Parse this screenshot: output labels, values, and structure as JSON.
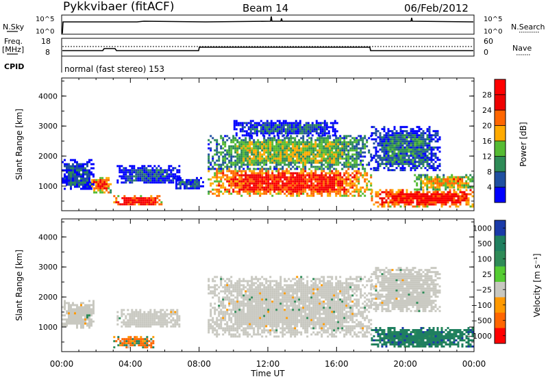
{
  "header": {
    "radar": "Pykkvibaer (fitACF)",
    "beam": "Beam 14",
    "date": "06/Feb/2012"
  },
  "status_panels": {
    "nsky_label": "N.Sky",
    "nsky_ticks": [
      "10^5",
      "10^0"
    ],
    "nsearch_label": "N.Search",
    "nsearch_ticks": [
      "10^5",
      "10^0"
    ],
    "freq_label": "Freq.",
    "freq_unit": "[MHz]",
    "freq_ticks": [
      "18",
      "8"
    ],
    "nave_label": "Nave",
    "nave_ticks": [
      "60",
      "0"
    ],
    "cpid_label": "CPID",
    "cpid_text": "normal (fast stereo) 153"
  },
  "chart_data": [
    {
      "type": "heatmap",
      "title": "",
      "xlabel": "",
      "ylabel": "Slant Range [km]",
      "x_ticks": [
        "00:00",
        "04:00",
        "08:00",
        "12:00",
        "16:00",
        "20:00",
        "00:00"
      ],
      "xlim_hours": [
        0,
        24
      ],
      "y_ticks": [
        "1000",
        "2000",
        "3000",
        "4000"
      ],
      "ylim": [
        180,
        4600
      ],
      "colorbar": {
        "label": "Power [dB]",
        "ticks": [
          "4",
          "8",
          "12",
          "16",
          "20",
          "24",
          "28"
        ],
        "range": [
          0,
          30
        ],
        "colors": [
          "#0000ff",
          "#1f4fa0",
          "#2e8b57",
          "#55bb33",
          "#ffaa00",
          "#ff6600",
          "#ee0000",
          "#ff0000"
        ]
      },
      "regions": [
        {
          "hours": [
            0.0,
            1.8
          ],
          "range_km": [
            900,
            1900
          ],
          "value": 6
        },
        {
          "hours": [
            1.6,
            2.8
          ],
          "range_km": [
            800,
            1300
          ],
          "value": 22
        },
        {
          "hours": [
            3.0,
            5.8
          ],
          "range_km": [
            380,
            700
          ],
          "value": 26
        },
        {
          "hours": [
            3.2,
            6.8
          ],
          "range_km": [
            1100,
            1700
          ],
          "value": 6
        },
        {
          "hours": [
            6.5,
            8.2
          ],
          "range_km": [
            900,
            1300
          ],
          "value": 6
        },
        {
          "hours": [
            8.5,
            18.0
          ],
          "range_km": [
            700,
            1600
          ],
          "value": 24
        },
        {
          "hours": [
            8.5,
            18.0
          ],
          "range_km": [
            1600,
            2700
          ],
          "value": 14
        },
        {
          "hours": [
            10.0,
            16.0
          ],
          "range_km": [
            2700,
            3200
          ],
          "value": 6
        },
        {
          "hours": [
            18.0,
            24.0
          ],
          "range_km": [
            350,
            900
          ],
          "value": 26
        },
        {
          "hours": [
            20.5,
            24.0
          ],
          "range_km": [
            900,
            1400
          ],
          "value": 18
        },
        {
          "hours": [
            18.0,
            22.0
          ],
          "range_km": [
            1500,
            3000
          ],
          "value": 8
        }
      ]
    },
    {
      "type": "heatmap",
      "title": "",
      "xlabel": "Time UT",
      "ylabel": "Slant Range [km]",
      "x_ticks": [
        "00:00",
        "04:00",
        "08:00",
        "12:00",
        "16:00",
        "20:00",
        "00:00"
      ],
      "xlim_hours": [
        0,
        24
      ],
      "y_ticks": [
        "1000",
        "2000",
        "3000",
        "4000"
      ],
      "ylim": [
        180,
        4600
      ],
      "colorbar": {
        "label": "Velocity [m s⁻¹]",
        "ticks": [
          "1000",
          "500",
          "100",
          "25",
          "−25",
          "−100",
          "−500",
          "−1000"
        ],
        "colors": [
          "#1a3aa8",
          "#1f7f5f",
          "#2e8b57",
          "#55cc33",
          "#c8c8c0",
          "#ff9900",
          "#ff6600",
          "#ff0000"
        ]
      },
      "regions": [
        {
          "hours": [
            0.0,
            1.8
          ],
          "range_km": [
            1000,
            1900
          ],
          "value": "ground"
        },
        {
          "hours": [
            3.0,
            5.5
          ],
          "range_km": [
            350,
            700
          ],
          "value": -100
        },
        {
          "hours": [
            3.2,
            6.8
          ],
          "range_km": [
            1000,
            1600
          ],
          "value": "ground"
        },
        {
          "hours": [
            8.5,
            18.0
          ],
          "range_km": [
            700,
            2700
          ],
          "value": "ground"
        },
        {
          "hours": [
            18.0,
            24.0
          ],
          "range_km": [
            350,
            1000
          ],
          "value": 300
        },
        {
          "hours": [
            18.0,
            22.0
          ],
          "range_km": [
            1500,
            3000
          ],
          "value": "ground"
        }
      ]
    }
  ]
}
